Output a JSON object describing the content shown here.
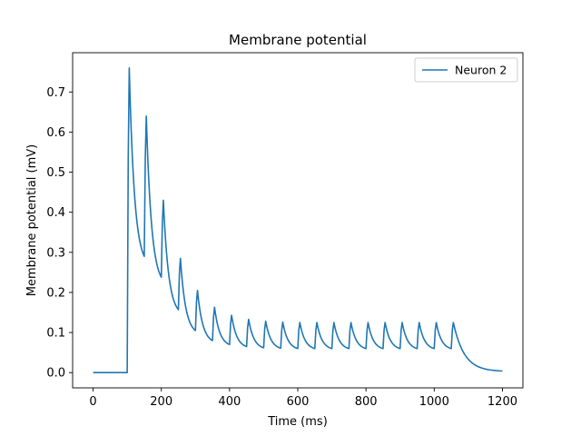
{
  "chart_data": {
    "type": "line",
    "title": "Membrane potential",
    "xlabel": "Time (ms)",
    "ylabel": "Membrane potential (mV)",
    "xlim": [
      -60,
      1260
    ],
    "ylim": [
      -0.038,
      0.798
    ],
    "xticks": [
      0,
      200,
      400,
      600,
      800,
      1000,
      1200
    ],
    "yticks": [
      0.0,
      0.1,
      0.2,
      0.3,
      0.4,
      0.5,
      0.6,
      0.7
    ],
    "ytick_labels": [
      "0.0",
      "0.1",
      "0.2",
      "0.3",
      "0.4",
      "0.5",
      "0.6",
      "0.7"
    ],
    "grid": false,
    "legend_position": "top-right",
    "series_color": "#1f77b4",
    "series": [
      {
        "name": "Neuron 2",
        "baseline": {
          "x": [
            0,
            99
          ],
          "y": [
            0.0,
            0.0
          ]
        },
        "spike_times": [
          100,
          150,
          200,
          250,
          300,
          350,
          400,
          450,
          500,
          550,
          600,
          650,
          700,
          750,
          800,
          850,
          900,
          950,
          1000,
          1050
        ],
        "spike_peaks": [
          0.76,
          0.64,
          0.43,
          0.285,
          0.205,
          0.163,
          0.143,
          0.133,
          0.128,
          0.126,
          0.125,
          0.125,
          0.125,
          0.125,
          0.125,
          0.125,
          0.125,
          0.125,
          0.125,
          0.125
        ],
        "pre_spike_troughs": [
          0.0,
          0.29,
          0.238,
          0.157,
          0.105,
          0.08,
          0.07,
          0.065,
          0.062,
          0.061,
          0.06,
          0.06,
          0.06,
          0.06,
          0.06,
          0.06,
          0.06,
          0.06,
          0.06,
          0.06
        ],
        "rise_duration_ms": 6,
        "tail": {
          "x_end": 1200,
          "y_end": 0.004
        }
      }
    ]
  }
}
